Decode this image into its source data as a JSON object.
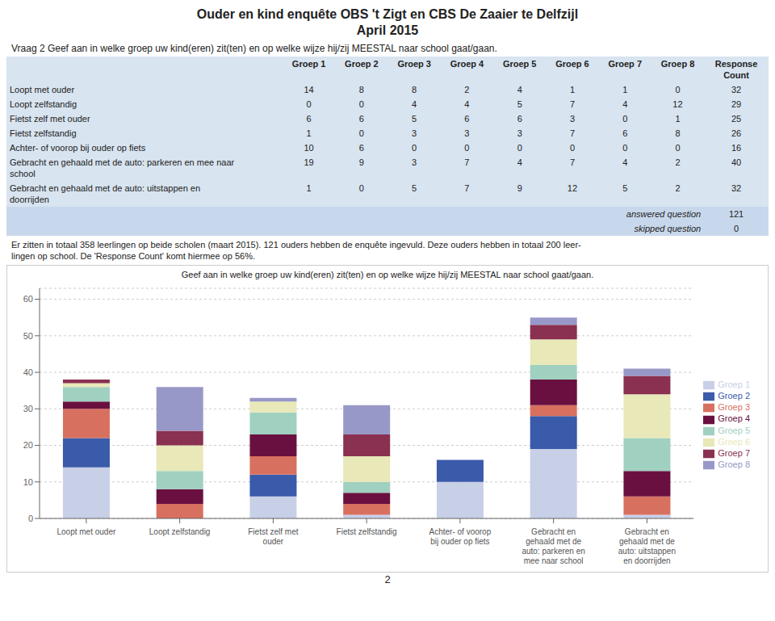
{
  "title": "Ouder en kind enquête OBS 't Zigt en CBS De Zaaier te Delfzijl",
  "subtitle": "April 2015",
  "question_text": "Vraag 2 Geef aan in welke groep uw kind(eren) zit(ten) en op welke wijze hij/zij MEESTAL naar school gaat/gaan.",
  "table": {
    "headers": [
      "Groep 1",
      "Groep 2",
      "Groep 3",
      "Groep 4",
      "Groep 5",
      "Groep 6",
      "Groep 7",
      "Groep 8",
      "Response\nCount"
    ],
    "rows": [
      {
        "label": "Loopt met ouder",
        "values": [
          14,
          8,
          8,
          2,
          4,
          1,
          1,
          0
        ],
        "total": 32
      },
      {
        "label": "Loopt zelfstandig",
        "values": [
          0,
          0,
          4,
          4,
          5,
          7,
          4,
          12
        ],
        "total": 29
      },
      {
        "label": "Fietst zelf met ouder",
        "values": [
          6,
          6,
          5,
          6,
          6,
          3,
          0,
          1
        ],
        "total": 25
      },
      {
        "label": "Fietst zelfstandig",
        "values": [
          1,
          0,
          3,
          3,
          3,
          7,
          6,
          8
        ],
        "total": 26
      },
      {
        "label": "Achter- of voorop bij ouder op fiets",
        "values": [
          10,
          6,
          0,
          0,
          0,
          0,
          0,
          0
        ],
        "total": 16
      },
      {
        "label": "Gebracht en gehaald met de auto: parkeren en mee naar\nschool",
        "values": [
          19,
          9,
          3,
          7,
          4,
          7,
          4,
          2
        ],
        "total": 40
      },
      {
        "label": "Gebracht en gehaald met de auto: uitstappen en\ndoorrijden",
        "values": [
          1,
          0,
          5,
          7,
          9,
          12,
          5,
          2
        ],
        "total": 32
      }
    ],
    "answered_label": "answered question",
    "answered_question": 121,
    "skipped_label": "skipped question",
    "skipped_question": 0
  },
  "footnote": [
    "Er zitten in totaal 358 leerlingen op beide scholen (maart 2015). 121 ouders hebben de enquête ingevuld. Deze ouders hebben in totaal 200 leer-",
    "lingen op school. De 'Response Count' komt hiermee op 56%."
  ],
  "page_number": "2",
  "chart_data": {
    "type": "bar",
    "stacked": true,
    "title": "Geef aan in welke groep uw kind(eren) zit(ten) en op welke wijze hij/zij MEESTAL naar school gaat/gaan.",
    "categories": [
      "Loopt met ouder",
      "Loopt zelfstandig",
      "Fietst zelf met\nouder",
      "Fietst zelfstandig",
      "Achter- of voorop\nbij ouder op fiets",
      "Gebracht en\ngehaald met de\nauto: parkeren en\nmee naar school",
      "Gebracht en\ngehaald met de\nauto: uitstappen\nen doorrijden"
    ],
    "series": [
      {
        "name": "Groep 1",
        "color": "#c8d0e8",
        "values": [
          14,
          0,
          6,
          1,
          10,
          19,
          1
        ]
      },
      {
        "name": "Groep 2",
        "color": "#3a5aaa",
        "values": [
          8,
          0,
          6,
          0,
          6,
          9,
          0
        ]
      },
      {
        "name": "Groep 3",
        "color": "#d87060",
        "values": [
          8,
          4,
          5,
          3,
          0,
          3,
          5
        ]
      },
      {
        "name": "Groep 4",
        "color": "#6a1040",
        "values": [
          2,
          4,
          6,
          3,
          0,
          7,
          7
        ]
      },
      {
        "name": "Groep 5",
        "color": "#a0d0c0",
        "values": [
          4,
          5,
          6,
          3,
          0,
          4,
          9
        ]
      },
      {
        "name": "Groep 6",
        "color": "#e8e8b8",
        "values": [
          1,
          7,
          3,
          7,
          0,
          7,
          12
        ]
      },
      {
        "name": "Groep 7",
        "color": "#8a3050",
        "values": [
          1,
          4,
          0,
          6,
          0,
          4,
          5
        ]
      },
      {
        "name": "Groep 8",
        "color": "#9898c8",
        "values": [
          0,
          12,
          1,
          8,
          0,
          2,
          2
        ]
      }
    ],
    "ylim": [
      0,
      63
    ],
    "yticks": [
      0,
      10,
      20,
      30,
      40,
      50,
      60
    ],
    "grid": true,
    "legend": "right"
  }
}
